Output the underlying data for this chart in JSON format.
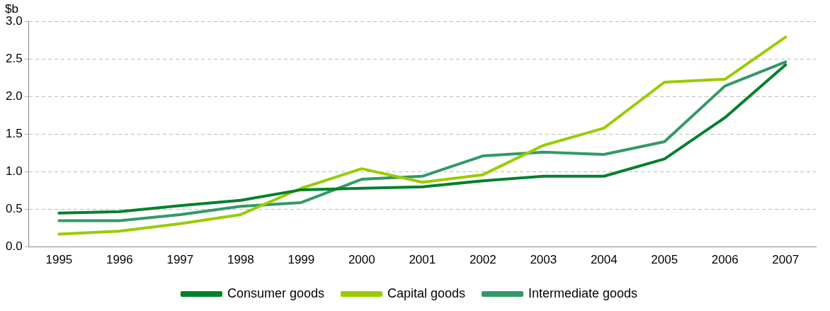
{
  "chart_data": {
    "type": "line",
    "ylabel": "$b",
    "categories": [
      "1995",
      "1996",
      "1997",
      "1998",
      "1999",
      "2000",
      "2001",
      "2002",
      "2003",
      "2004",
      "2005",
      "2006",
      "2007"
    ],
    "series": [
      {
        "name": "Consumer goods",
        "color": "#00802b",
        "values": [
          0.45,
          0.47,
          0.55,
          0.62,
          0.76,
          0.78,
          0.8,
          0.88,
          0.94,
          0.94,
          1.17,
          1.72,
          2.42
        ]
      },
      {
        "name": "Capital goods",
        "color": "#99cc00",
        "values": [
          0.17,
          0.21,
          0.31,
          0.43,
          0.78,
          1.04,
          0.86,
          0.96,
          1.35,
          1.58,
          2.19,
          2.23,
          2.79
        ]
      },
      {
        "name": "Intermediate goods",
        "color": "#339966",
        "values": [
          0.35,
          0.35,
          0.43,
          0.54,
          0.59,
          0.9,
          0.94,
          1.21,
          1.26,
          1.23,
          1.4,
          2.14,
          2.46
        ]
      }
    ],
    "ylim": [
      0,
      3
    ],
    "yticks": [
      {
        "value": 0,
        "label": "0.0"
      },
      {
        "value": 0.5,
        "label": "0.5"
      },
      {
        "value": 1,
        "label": "1.0"
      },
      {
        "value": 1.5,
        "label": "1.5"
      },
      {
        "value": 2,
        "label": "2.0"
      },
      {
        "value": 2.5,
        "label": "2.5"
      },
      {
        "value": 3,
        "label": "3.0"
      }
    ],
    "grid": "y",
    "legend": "bottom",
    "marker": "none",
    "line_style": "solid"
  }
}
